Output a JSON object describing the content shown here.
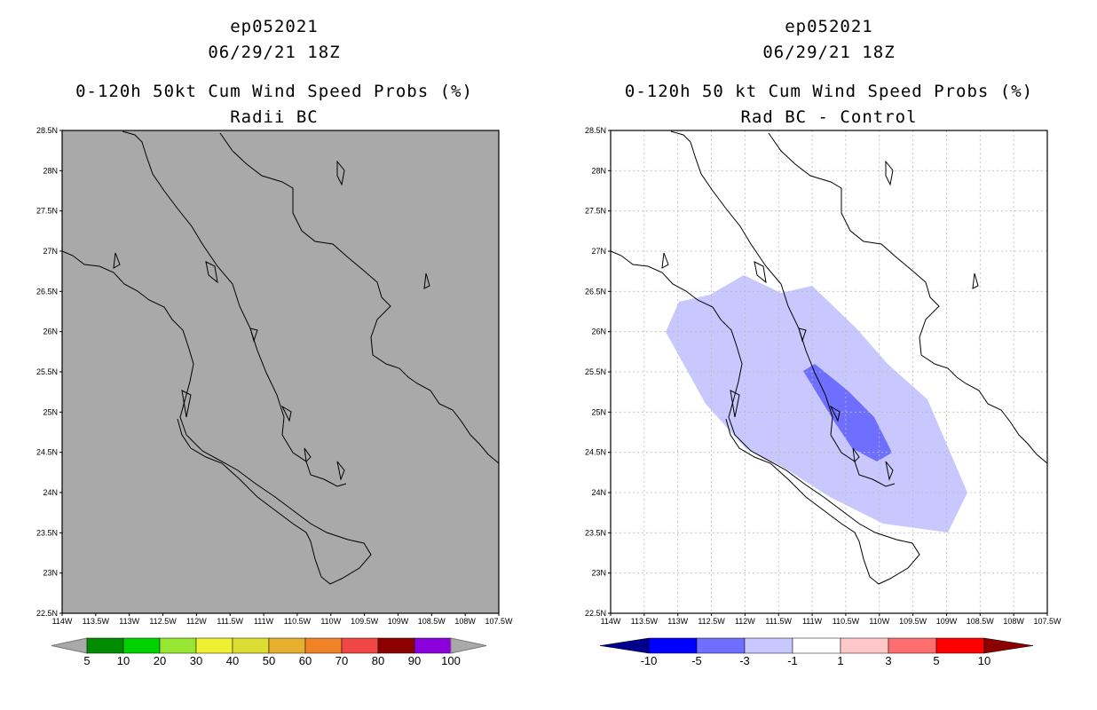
{
  "left_panel": {
    "title_line1": "ep052021",
    "title_line2": "06/29/21 18Z",
    "title_line3": "0-120h 50kt Cum Wind Speed Probs (%)",
    "title_line4": "Radii BC",
    "lat_labels": [
      "28.5N",
      "28N",
      "27.5N",
      "27N",
      "26.5N",
      "26N",
      "25.5N",
      "25N",
      "24.5N",
      "24N",
      "23.5N",
      "23N",
      "22.5N"
    ],
    "lon_labels": [
      "114W",
      "113.5W",
      "113W",
      "112.5W",
      "112W",
      "111.5W",
      "111W",
      "110.5W",
      "110W",
      "109.5W",
      "109W",
      "108.5W",
      "108W",
      "107.5W"
    ],
    "background_color": "#a9a9a9",
    "colorbar": {
      "colors": [
        "#008c00",
        "#00d200",
        "#96e632",
        "#f0f032",
        "#dcdc32",
        "#e6af2d",
        "#f08228",
        "#f04646",
        "#8c0000",
        "#8c00dc"
      ],
      "labels": [
        "5",
        "10",
        "20",
        "30",
        "40",
        "50",
        "60",
        "70",
        "80",
        "90",
        "100"
      ]
    }
  },
  "right_panel": {
    "title_line1": "ep052021",
    "title_line2": "06/29/21 18Z",
    "title_line3": "0-120h 50 kt Cum Wind Speed Probs (%)",
    "title_line4": "Rad BC - Control",
    "lat_labels": [
      "28.5N",
      "28N",
      "27.5N",
      "27N",
      "26.5N",
      "26N",
      "25.5N",
      "25N",
      "24.5N",
      "24N",
      "23.5N",
      "23N",
      "22.5N"
    ],
    "lon_labels": [
      "114W",
      "113.5W",
      "113W",
      "112.5W",
      "112W",
      "111.5W",
      "111W",
      "110.5W",
      "110W",
      "109.5W",
      "109W",
      "108.5W",
      "108W",
      "107.5W"
    ],
    "shade_colors": {
      "light": "#c8c8ff",
      "medium": "#6e6eff"
    },
    "colorbar": {
      "colors": [
        "#00008c",
        "#0000ff",
        "#6e6eff",
        "#c8c8ff",
        "#ffffff",
        "#ffc8c8",
        "#ff6e6e",
        "#ff0000",
        "#8c0000"
      ],
      "labels": [
        "-10",
        "-5",
        "-3",
        "-1",
        "1",
        "3",
        "5",
        "10"
      ]
    }
  }
}
